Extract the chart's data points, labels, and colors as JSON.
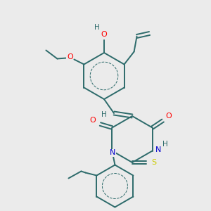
{
  "background_color": "#ebebeb",
  "bond_color": "#2d6b6b",
  "atom_colors": {
    "O": "#ff0000",
    "N": "#0000cc",
    "S": "#cccc00",
    "H": "#2d6b6b",
    "C": "#2d6b6b"
  },
  "figsize": [
    3.0,
    3.0
  ],
  "dpi": 100
}
